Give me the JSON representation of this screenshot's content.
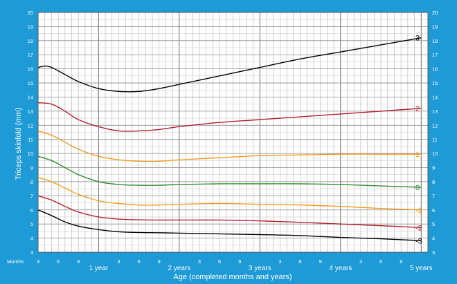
{
  "chart_data": {
    "type": "line",
    "ylabel": "Triceps skinfold (mm)",
    "xlabel": "Age (completed months and years)",
    "months_label": "Months",
    "ylim": [
      3,
      20
    ],
    "xlim": [
      3,
      61
    ],
    "y_ticks": [
      3,
      4,
      5,
      6,
      7,
      8,
      9,
      10,
      11,
      12,
      13,
      14,
      15,
      16,
      17,
      18,
      19,
      20
    ],
    "x_month_ticks": [
      {
        "x": 3,
        "label": "3"
      },
      {
        "x": 6,
        "label": "6"
      },
      {
        "x": 9,
        "label": "9"
      },
      {
        "x": 15,
        "label": "3"
      },
      {
        "x": 18,
        "label": "6"
      },
      {
        "x": 21,
        "label": "9"
      },
      {
        "x": 27,
        "label": "3"
      },
      {
        "x": 30,
        "label": "6"
      },
      {
        "x": 33,
        "label": "9"
      },
      {
        "x": 39,
        "label": "3"
      },
      {
        "x": 42,
        "label": "6"
      },
      {
        "x": 45,
        "label": "9"
      },
      {
        "x": 51,
        "label": "3"
      },
      {
        "x": 54,
        "label": "6"
      },
      {
        "x": 57,
        "label": "9"
      }
    ],
    "x_year_ticks": [
      {
        "x": 12,
        "label": "1 year"
      },
      {
        "x": 24,
        "label": "2 years"
      },
      {
        "x": 36,
        "label": "3 years"
      },
      {
        "x": 48,
        "label": "4 years"
      },
      {
        "x": 60,
        "label": "5 years"
      }
    ],
    "grid": true,
    "background": "#1e9ad6",
    "series": [
      {
        "name": "3",
        "color": "#000000",
        "x": [
          3,
          4,
          5,
          7,
          9,
          12,
          15,
          18,
          21,
          24,
          30,
          36,
          42,
          48,
          54,
          60
        ],
        "y": [
          16.1,
          16.2,
          16.1,
          15.6,
          15.1,
          14.6,
          14.4,
          14.4,
          14.6,
          14.9,
          15.5,
          16.1,
          16.7,
          17.2,
          17.7,
          18.2
        ]
      },
      {
        "name": "2",
        "color": "#b0212a",
        "x": [
          3,
          5,
          7,
          9,
          12,
          15,
          18,
          21,
          24,
          30,
          36,
          42,
          48,
          54,
          60
        ],
        "y": [
          13.6,
          13.5,
          13.0,
          12.4,
          11.9,
          11.6,
          11.6,
          11.7,
          11.9,
          12.2,
          12.4,
          12.6,
          12.8,
          13.0,
          13.2
        ]
      },
      {
        "name": "1",
        "color": "#f49a20",
        "x": [
          3,
          5,
          7,
          9,
          12,
          15,
          18,
          21,
          24,
          30,
          36,
          42,
          48,
          54,
          60
        ],
        "y": [
          11.6,
          11.3,
          10.8,
          10.3,
          9.8,
          9.55,
          9.45,
          9.45,
          9.55,
          9.7,
          9.85,
          9.9,
          9.95,
          9.95,
          9.95
        ]
      },
      {
        "name": "0",
        "color": "#2e8b2e",
        "x": [
          3,
          5,
          7,
          9,
          12,
          15,
          18,
          21,
          24,
          30,
          36,
          42,
          48,
          54,
          60
        ],
        "y": [
          9.8,
          9.5,
          9.0,
          8.5,
          8.0,
          7.8,
          7.75,
          7.75,
          7.8,
          7.85,
          7.85,
          7.85,
          7.8,
          7.7,
          7.6
        ]
      },
      {
        "name": "-1",
        "color": "#f49a20",
        "x": [
          3,
          5,
          7,
          9,
          12,
          15,
          18,
          21,
          24,
          30,
          36,
          42,
          48,
          54,
          60
        ],
        "y": [
          8.3,
          8.0,
          7.55,
          7.1,
          6.65,
          6.45,
          6.35,
          6.35,
          6.4,
          6.45,
          6.4,
          6.35,
          6.25,
          6.1,
          6.0
        ]
      },
      {
        "name": "-2",
        "color": "#b0212a",
        "x": [
          3,
          5,
          7,
          9,
          12,
          15,
          18,
          21,
          24,
          30,
          36,
          42,
          48,
          54,
          60
        ],
        "y": [
          7.0,
          6.7,
          6.25,
          5.85,
          5.5,
          5.35,
          5.3,
          5.28,
          5.28,
          5.28,
          5.22,
          5.12,
          5.0,
          4.88,
          4.75
        ]
      },
      {
        "name": "-3",
        "color": "#000000",
        "x": [
          3,
          5,
          7,
          9,
          12,
          15,
          18,
          21,
          24,
          30,
          36,
          42,
          48,
          54,
          60
        ],
        "y": [
          6.0,
          5.6,
          5.15,
          4.85,
          4.6,
          4.45,
          4.4,
          4.38,
          4.35,
          4.3,
          4.25,
          4.18,
          4.05,
          3.95,
          3.82
        ]
      }
    ]
  }
}
